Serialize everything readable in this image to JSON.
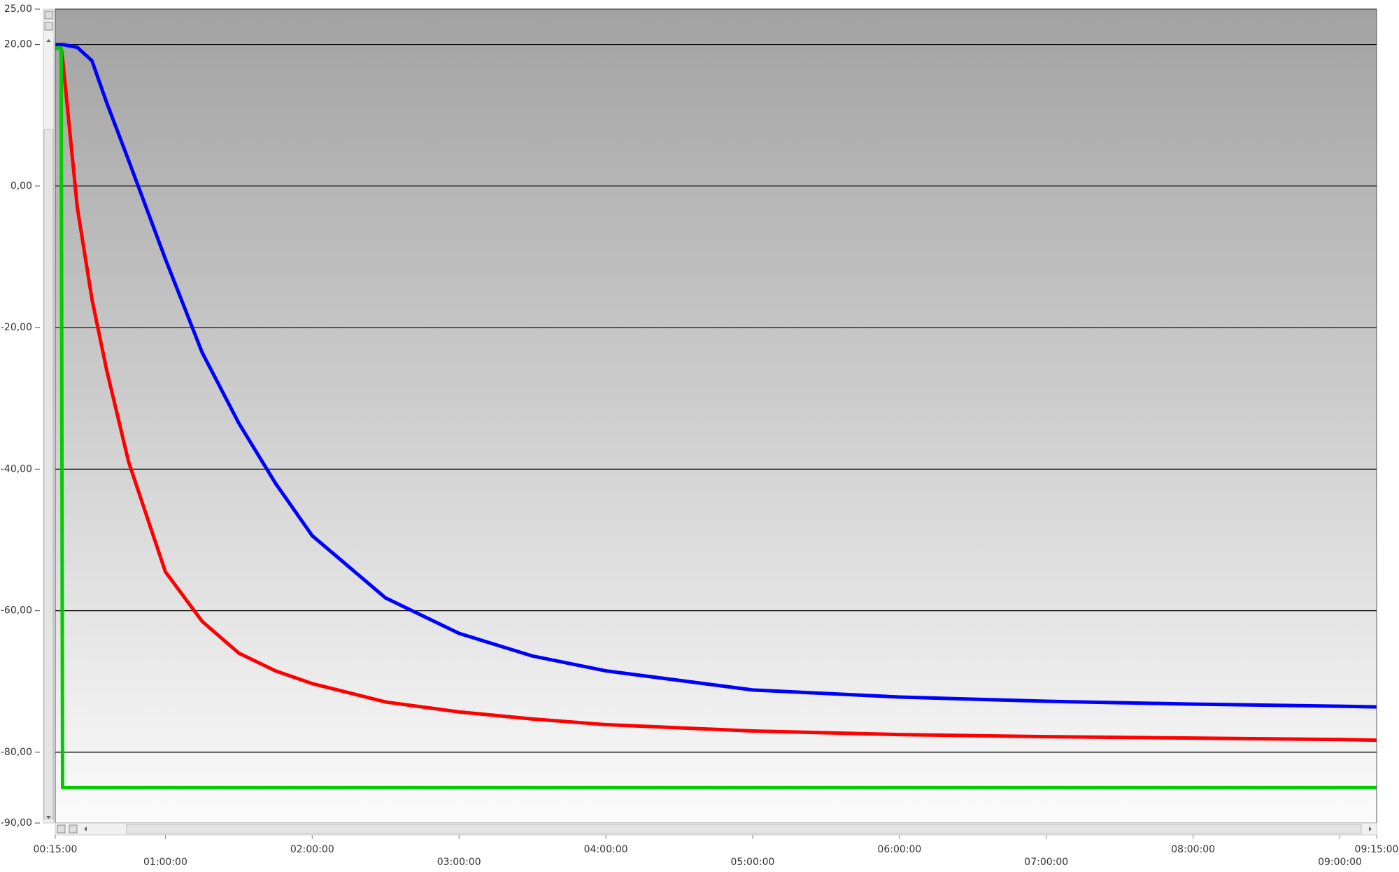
{
  "chart_data": {
    "type": "line",
    "x": [
      0.25,
      0.29,
      0.3,
      0.4,
      0.5,
      0.6,
      0.75,
      1,
      1.25,
      1.5,
      1.75,
      2,
      2.5,
      3,
      3.5,
      4,
      5,
      6,
      7,
      8,
      9,
      9.25
    ],
    "series": [
      {
        "color": "#0000ff",
        "values": [
          20,
          20,
          20,
          19.6,
          17.7,
          11.8,
          3.6,
          -10.3,
          -23.5,
          -33.5,
          -42,
          -49.4,
          -58.2,
          -63.2,
          -66.4,
          -68.5,
          -71.2,
          -72.2,
          -72.8,
          -73.2,
          -73.5,
          -73.6
        ]
      },
      {
        "color": "#ff0000",
        "values": [
          19.5,
          19.5,
          18,
          -3,
          -16,
          -26,
          -39,
          -54.5,
          -61.5,
          -66,
          -68.5,
          -70.3,
          -72.9,
          -74.3,
          -75.3,
          -76.1,
          -77,
          -77.5,
          -77.8,
          -78,
          -78.2,
          -78.3
        ]
      },
      {
        "color": "#00cc00",
        "values": [
          19.5,
          19.5,
          -85,
          -85,
          -85,
          -85,
          -85,
          -85,
          -85,
          -85,
          -85,
          -85,
          -85,
          -85,
          -85,
          -85,
          -85,
          -85,
          -85,
          -85,
          -85,
          -85
        ]
      }
    ],
    "xlim": [
      0.25,
      9.25
    ],
    "xticks": [
      {
        "value": 0.25,
        "label": "00:15:00"
      },
      {
        "value": 1,
        "label": "01:00:00"
      },
      {
        "value": 2,
        "label": "02:00:00"
      },
      {
        "value": 3,
        "label": "03:00:00"
      },
      {
        "value": 4,
        "label": "04:00:00"
      },
      {
        "value": 5,
        "label": "05:00:00"
      },
      {
        "value": 6,
        "label": "06:00:00"
      },
      {
        "value": 7,
        "label": "07:00:00"
      },
      {
        "value": 8,
        "label": "08:00:00"
      },
      {
        "value": 9,
        "label": "09:00:00"
      },
      {
        "value": 9.25,
        "label": "09:15:00"
      }
    ],
    "ylim": [
      -90,
      25
    ],
    "yticks": [
      {
        "value": 25,
        "label": "25,00"
      },
      {
        "value": 20,
        "label": "20,00"
      },
      {
        "value": 0,
        "label": "0,00"
      },
      {
        "value": -20,
        "label": "-20,00"
      },
      {
        "value": -40,
        "label": "-40,00"
      },
      {
        "value": -60,
        "label": "-60,00"
      },
      {
        "value": -80,
        "label": "-80,00"
      },
      {
        "value": -90,
        "label": "-90,00"
      }
    ],
    "grid": true
  }
}
